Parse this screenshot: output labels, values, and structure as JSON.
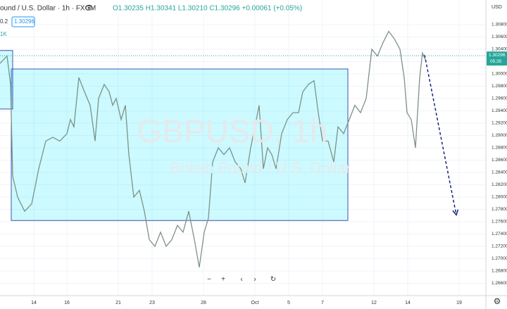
{
  "chart_data": {
    "type": "line",
    "title": "ound / U.S. Dollar · 1h · FXCM",
    "ohlc_label": "O1.30235 H1.30341 L1.30210 C1.30296 +0.00061 (+0.05%)",
    "indicator_value": "0.2",
    "price_box": "1.30296",
    "volume_label": "1K",
    "watermark": "GBPUSD, 1h",
    "watermark_subtitle": "British Pound / U.S. Dollar",
    "currency": "USD",
    "last_price": {
      "value": 1.30296,
      "label": "1.30296"
    },
    "countdown": "05:35",
    "color": "#7f9189",
    "x": [
      0,
      10,
      15,
      18,
      25,
      35,
      45,
      55,
      65,
      75,
      85,
      95,
      100,
      105,
      112,
      120,
      128,
      135,
      140,
      148,
      155,
      160,
      165,
      172,
      178,
      183,
      190,
      198,
      205,
      212,
      220,
      228,
      236,
      244,
      252,
      260,
      268,
      276,
      283,
      290,
      296,
      302,
      310,
      318,
      326,
      334,
      342,
      348,
      356,
      362,
      368,
      374,
      380,
      386,
      392,
      400,
      408,
      416,
      424,
      430,
      438,
      446,
      452,
      458,
      466,
      474,
      480,
      488,
      496,
      504,
      512,
      520,
      528,
      536,
      544,
      552,
      560,
      568,
      574,
      578,
      584,
      590,
      596,
      600,
      604
    ],
    "values": [
      1.3017,
      1.3029,
      1.2983,
      1.2834,
      1.28,
      1.2777,
      1.2789,
      1.2846,
      1.2891,
      1.2897,
      1.2891,
      1.2903,
      1.2926,
      1.2914,
      1.2994,
      1.2971,
      1.2949,
      1.2891,
      1.296,
      1.2983,
      1.2971,
      1.2949,
      1.296,
      1.2926,
      1.2949,
      1.2869,
      1.28,
      1.2811,
      1.2777,
      1.2731,
      1.272,
      1.2743,
      1.272,
      1.2731,
      1.2754,
      1.2743,
      1.2777,
      1.2731,
      1.2686,
      1.2743,
      1.2766,
      1.2857,
      1.288,
      1.2869,
      1.288,
      1.2857,
      1.2846,
      1.2823,
      1.288,
      1.2914,
      1.2949,
      1.2846,
      1.288,
      1.2869,
      1.2846,
      1.2903,
      1.2926,
      1.2937,
      1.2937,
      1.2971,
      1.2983,
      1.2989,
      1.2937,
      1.2891,
      1.2891,
      1.2857,
      1.2914,
      1.2903,
      1.2926,
      1.2949,
      1.2937,
      1.296,
      1.304,
      1.3029,
      1.3051,
      1.3069,
      1.3057,
      1.304,
      1.2994,
      1.2937,
      1.2926,
      1.288,
      1.2994,
      1.3034,
      1.3023
    ],
    "xlim": [
      0,
      690
    ],
    "ylim": [
      1.264,
      1.312
    ],
    "xticks": [
      {
        "value": 48,
        "label": "14"
      },
      {
        "value": 95,
        "label": "16"
      },
      {
        "value": 168,
        "label": "21"
      },
      {
        "value": 216,
        "label": "23"
      },
      {
        "value": 289,
        "label": "28"
      },
      {
        "value": 362,
        "label": "Oct"
      },
      {
        "value": 410,
        "label": "5"
      },
      {
        "value": 458,
        "label": "7"
      },
      {
        "value": 531,
        "label": "12"
      },
      {
        "value": 579,
        "label": "14"
      },
      {
        "value": 652,
        "label": "19"
      }
    ],
    "yticks": [
      {
        "value": 1.266,
        "label": "1.26600"
      },
      {
        "value": 1.268,
        "label": "1.26800"
      },
      {
        "value": 1.27,
        "label": "1.27000"
      },
      {
        "value": 1.272,
        "label": "1.27200"
      },
      {
        "value": 1.274,
        "label": "1.27400"
      },
      {
        "value": 1.276,
        "label": "1.27600"
      },
      {
        "value": 1.278,
        "label": "1.27800"
      },
      {
        "value": 1.28,
        "label": "1.28000"
      },
      {
        "value": 1.282,
        "label": "1.28200"
      },
      {
        "value": 1.284,
        "label": "1.28400"
      },
      {
        "value": 1.286,
        "label": "1.28600"
      },
      {
        "value": 1.288,
        "label": "1.28800"
      },
      {
        "value": 1.29,
        "label": "1.29000"
      },
      {
        "value": 1.292,
        "label": "1.29200"
      },
      {
        "value": 1.294,
        "label": "1.29400"
      },
      {
        "value": 1.296,
        "label": "1.29600"
      },
      {
        "value": 1.298,
        "label": "1.29800"
      },
      {
        "value": 1.3,
        "label": "1.30000"
      },
      {
        "value": 1.302,
        "label": "1.30200"
      },
      {
        "value": 1.304,
        "label": "1.30400"
      },
      {
        "value": 1.306,
        "label": "1.30600"
      },
      {
        "value": 1.308,
        "label": "1.30800"
      }
    ],
    "grid": true,
    "rectangles": [
      {
        "x": [
          16,
          494
        ],
        "y": [
          1.2762,
          1.3008
        ]
      },
      {
        "x": [
          -10,
          18
        ],
        "y": [
          1.2943,
          1.3038
        ]
      }
    ],
    "arrow": {
      "x": [
        603,
        648
      ],
      "y": [
        1.3031,
        1.2771
      ]
    }
  }
}
